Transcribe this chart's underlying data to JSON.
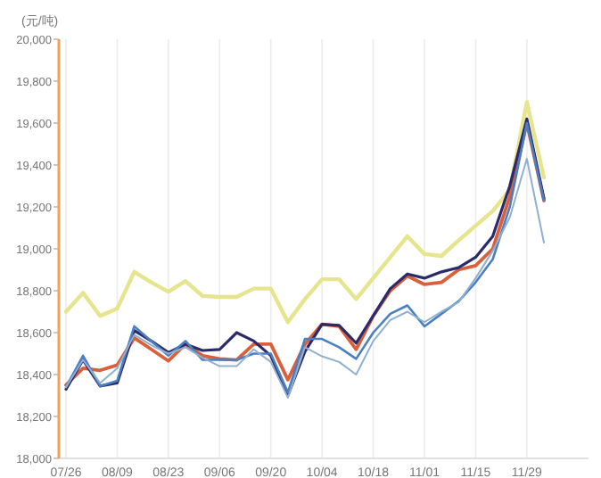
{
  "chart_data": {
    "type": "line",
    "ylabel": "(元/吨)",
    "grid": "x",
    "categories": [
      "07/26",
      null,
      null,
      "08/09",
      null,
      null,
      "08/23",
      null,
      null,
      "09/06",
      null,
      null,
      "09/20",
      null,
      null,
      "10/04",
      null,
      null,
      "10/18",
      null,
      null,
      "11/01",
      null,
      null,
      "11/15",
      null,
      null,
      "11/29",
      null
    ],
    "ylim": [
      18000,
      20000
    ],
    "yticks": [
      {
        "value": 18000,
        "label": "18,000"
      },
      {
        "value": 18200,
        "label": "18,200"
      },
      {
        "value": 18400,
        "label": "18,400"
      },
      {
        "value": 18600,
        "label": "18,600"
      },
      {
        "value": 18800,
        "label": "18,800"
      },
      {
        "value": 19000,
        "label": "19,000"
      },
      {
        "value": 19200,
        "label": "19,200"
      },
      {
        "value": 19400,
        "label": "19,400"
      },
      {
        "value": 19600,
        "label": "19,600"
      },
      {
        "value": 19800,
        "label": "19,800"
      },
      {
        "value": 20000,
        "label": "20,000"
      }
    ],
    "series": [
      {
        "color": "#e6e48c",
        "values": [
          18700,
          18790,
          18680,
          18715,
          18890,
          18840,
          18795,
          18846,
          18775,
          18770,
          18770,
          18810,
          18810,
          18650,
          18760,
          18855,
          18855,
          18760,
          18860,
          18960,
          19060,
          18975,
          18966,
          19040,
          19110,
          19180,
          19280,
          19700,
          19340
        ]
      },
      {
        "color": "#d9603b",
        "values": [
          18350,
          18430,
          18420,
          18445,
          18575,
          18520,
          18465,
          18545,
          18490,
          18475,
          18470,
          18545,
          18545,
          18375,
          18545,
          18640,
          18630,
          18520,
          18680,
          18800,
          18870,
          18830,
          18840,
          18900,
          18920,
          19000,
          19250,
          19600,
          19230
        ]
      },
      {
        "color": "#2b2a6b",
        "values": [
          18330,
          18470,
          18345,
          18360,
          18610,
          18560,
          18505,
          18545,
          18515,
          18520,
          18600,
          18560,
          18490,
          18300,
          18510,
          18640,
          18635,
          18550,
          18680,
          18810,
          18880,
          18860,
          18890,
          18910,
          18960,
          19060,
          19300,
          19620,
          19240
        ]
      },
      {
        "color": "#4a7fc1",
        "values": [
          18340,
          18490,
          18345,
          18370,
          18630,
          18560,
          18490,
          18560,
          18470,
          18470,
          18470,
          18500,
          18500,
          18315,
          18570,
          18570,
          18530,
          18475,
          18600,
          18690,
          18730,
          18630,
          18690,
          18750,
          18840,
          18950,
          19200,
          19600,
          19230
        ]
      },
      {
        "color": "#8fb0d0",
        "values": [
          18340,
          18470,
          18360,
          18430,
          18590,
          18540,
          18500,
          18530,
          18480,
          18440,
          18440,
          18520,
          18460,
          18290,
          18530,
          18487,
          18460,
          18400,
          18560,
          18660,
          18700,
          18650,
          18700,
          18745,
          18860,
          18990,
          19150,
          19430,
          19030
        ]
      }
    ]
  }
}
